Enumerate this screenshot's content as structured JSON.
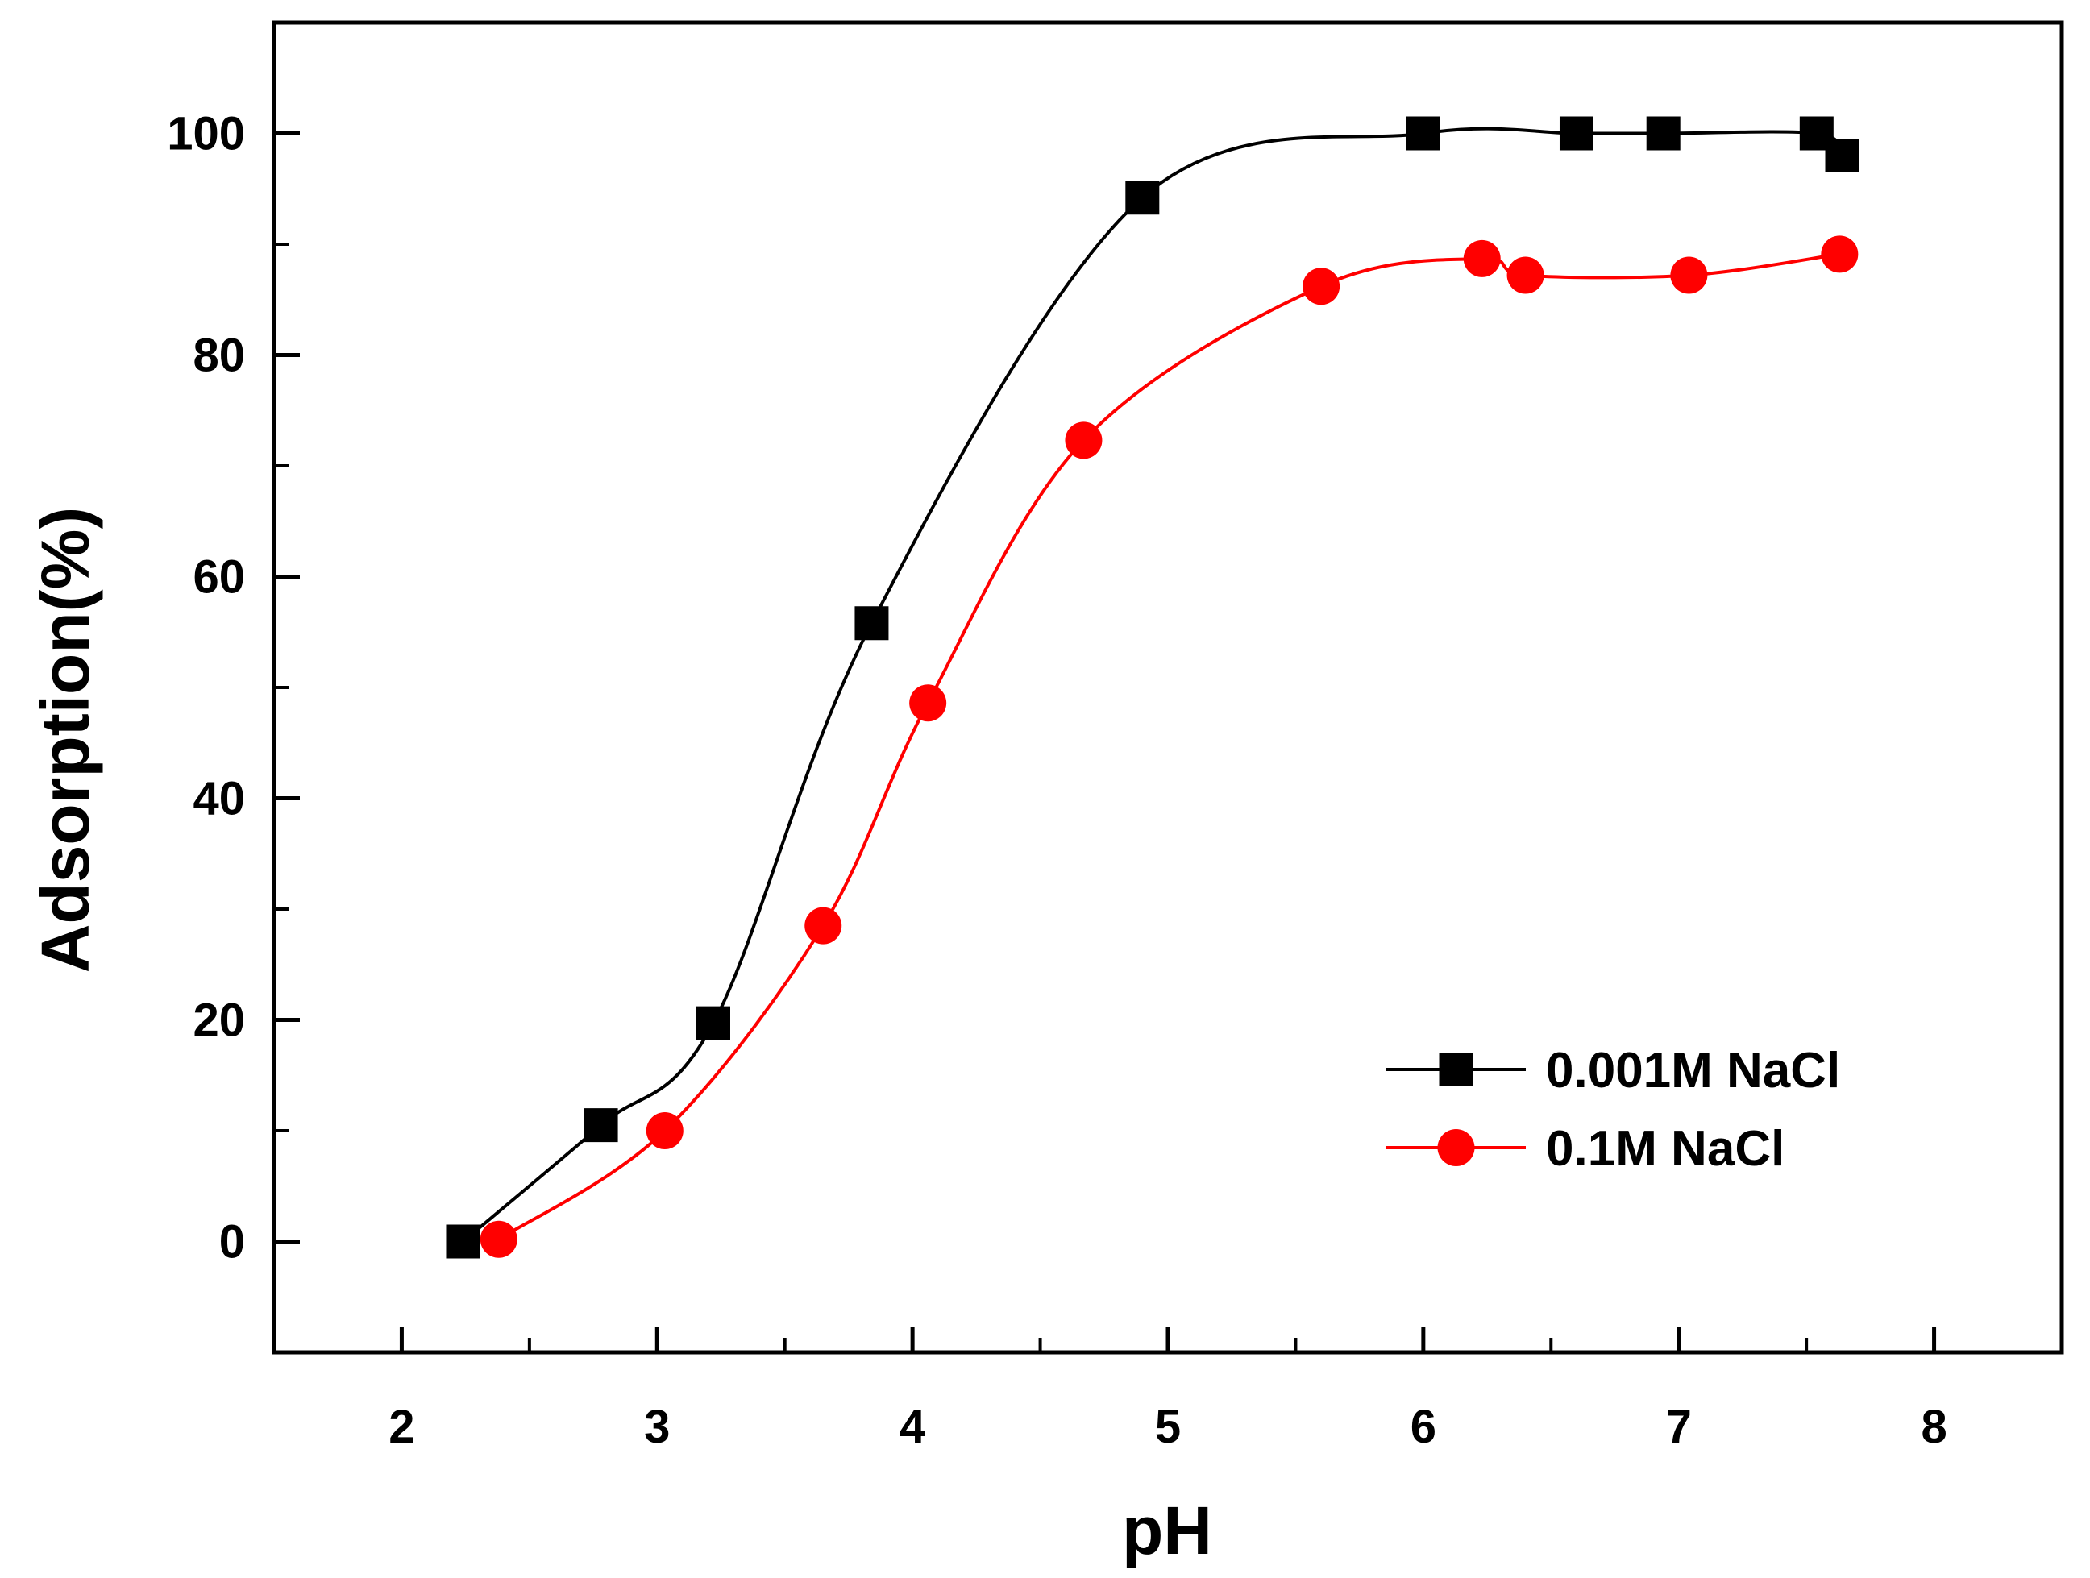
{
  "chart_data": {
    "type": "line",
    "title": "",
    "xlabel": "pH",
    "ylabel": "Adsorption(%)",
    "xlim": [
      1.5,
      8.5
    ],
    "ylim": [
      -10,
      110
    ],
    "x_ticks": [
      2,
      3,
      4,
      5,
      6,
      7,
      8
    ],
    "y_ticks": [
      0,
      20,
      40,
      60,
      80,
      100
    ],
    "x_tick_labels": [
      "2",
      "3",
      "4",
      "5",
      "6",
      "7",
      "8"
    ],
    "y_tick_labels": [
      "0",
      "20",
      "40",
      "60",
      "80",
      "100"
    ],
    "grid": false,
    "legend_position": "lower-right",
    "series": [
      {
        "name": "0.001M NaCl",
        "color": "#000000",
        "marker": "square",
        "x": [
          2.24,
          2.78,
          3.22,
          3.84,
          4.9,
          6.0,
          6.6,
          6.94,
          7.54,
          7.64
        ],
        "y": [
          0,
          10.5,
          19.7,
          55.8,
          94.2,
          100,
          100,
          100,
          100,
          98
        ]
      },
      {
        "name": "0.1M NaCl",
        "color": "#ff0000",
        "marker": "circle",
        "x": [
          2.38,
          3.03,
          3.65,
          4.06,
          4.67,
          5.6,
          6.23,
          6.4,
          7.04,
          7.63
        ],
        "y": [
          0.2,
          10,
          28.5,
          48.6,
          72.3,
          86.2,
          88.7,
          87.2,
          87.2,
          89.1
        ]
      }
    ]
  }
}
